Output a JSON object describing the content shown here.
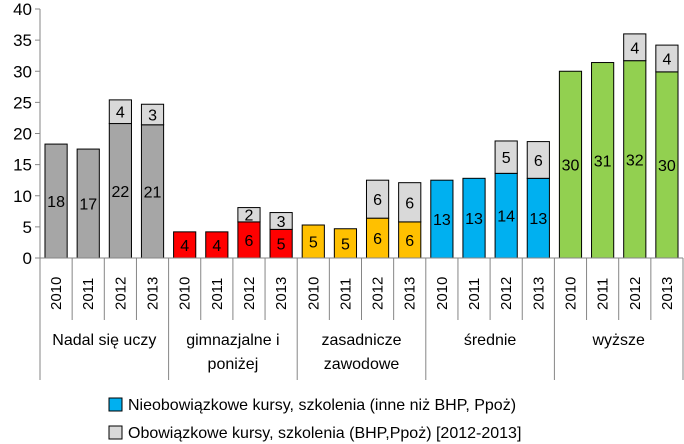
{
  "chart_data": {
    "type": "bar",
    "stacked": true,
    "title": "",
    "xlabel": "",
    "ylabel": "",
    "ylim": [
      0,
      40
    ],
    "yticks": [
      0,
      5,
      10,
      15,
      20,
      25,
      30,
      35,
      40
    ],
    "grid": false,
    "legend_position": "bottom",
    "groups": [
      "Nadal się uczy",
      "gimnazjalne i poniżej",
      "zasadnicze zawodowe",
      "średnie",
      "wyższe"
    ],
    "years": [
      "2010",
      "2011",
      "2012",
      "2013"
    ],
    "group_colors": [
      "#a6a6a6",
      "#ff0000",
      "#ffc000",
      "#00b0f0",
      "#92d050"
    ],
    "series": [
      {
        "name": "Nieobowiązkowe kursy, szkolenia (inne niż BHP, Ppoż)",
        "color": "#00b0f0",
        "values": [
          [
            18.3,
            17.5,
            21.6,
            21.4
          ],
          [
            4.2,
            4.2,
            5.8,
            4.6
          ],
          [
            5.3,
            4.7,
            6.4,
            5.8
          ],
          [
            12.5,
            12.8,
            13.6,
            12.8
          ],
          [
            30.0,
            31.4,
            31.7,
            29.9
          ]
        ],
        "labels": [
          [
            "18",
            "17",
            "22",
            "21"
          ],
          [
            "4",
            "4",
            "6",
            "5"
          ],
          [
            "5",
            "5",
            "6",
            "6"
          ],
          [
            "13",
            "13",
            "14",
            "13"
          ],
          [
            "30",
            "31",
            "32",
            "30"
          ]
        ]
      },
      {
        "name": "Obowiązkowe kursy, szkolenia (BHP,Ppoż) [2012-2013]",
        "color": "#d9d9d9",
        "values": [
          [
            0,
            0,
            3.8,
            3.3
          ],
          [
            0,
            0,
            2.3,
            2.7
          ],
          [
            0,
            0,
            6.1,
            6.3
          ],
          [
            0,
            0,
            5.2,
            5.9
          ],
          [
            0,
            0,
            4.3,
            4.3
          ]
        ],
        "labels": [
          [
            "",
            "",
            "4",
            "3"
          ],
          [
            "",
            "",
            "2",
            "3"
          ],
          [
            "",
            "",
            "6",
            "6"
          ],
          [
            "",
            "",
            "5",
            "6"
          ],
          [
            "",
            "",
            "4",
            "4"
          ]
        ]
      }
    ],
    "group_label_lines": [
      [
        "Nadal się uczy"
      ],
      [
        "gimnazjalne i",
        "poniżej"
      ],
      [
        "zasadnicze",
        "zawodowe"
      ],
      [
        "średnie"
      ],
      [
        "wyższe"
      ]
    ]
  }
}
